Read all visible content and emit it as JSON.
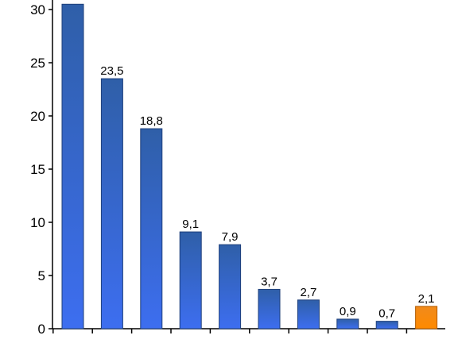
{
  "chart_data": {
    "type": "bar",
    "categories": [
      "",
      "",
      "",
      "",
      "",
      "",
      "",
      "",
      "",
      ""
    ],
    "values": [
      30.5,
      23.5,
      18.8,
      9.1,
      7.9,
      3.7,
      2.7,
      0.9,
      0.7,
      2.1
    ],
    "data_labels": [
      "",
      "23,5",
      "18,8",
      "9,1",
      "7,9",
      "3,7",
      "2,7",
      "0,9",
      "0,7",
      "2,1"
    ],
    "yticks": [
      0,
      5,
      10,
      15,
      20,
      25,
      30
    ],
    "ylim": [
      0,
      31
    ],
    "grid": false,
    "highlight_index": 9,
    "colors": {
      "bar_top": "#2f5fa8",
      "bar_bottom": "#3d6ef0",
      "highlight_top": "#f08a1c",
      "highlight_bottom": "#ff8a00",
      "axis": "#000000"
    }
  }
}
